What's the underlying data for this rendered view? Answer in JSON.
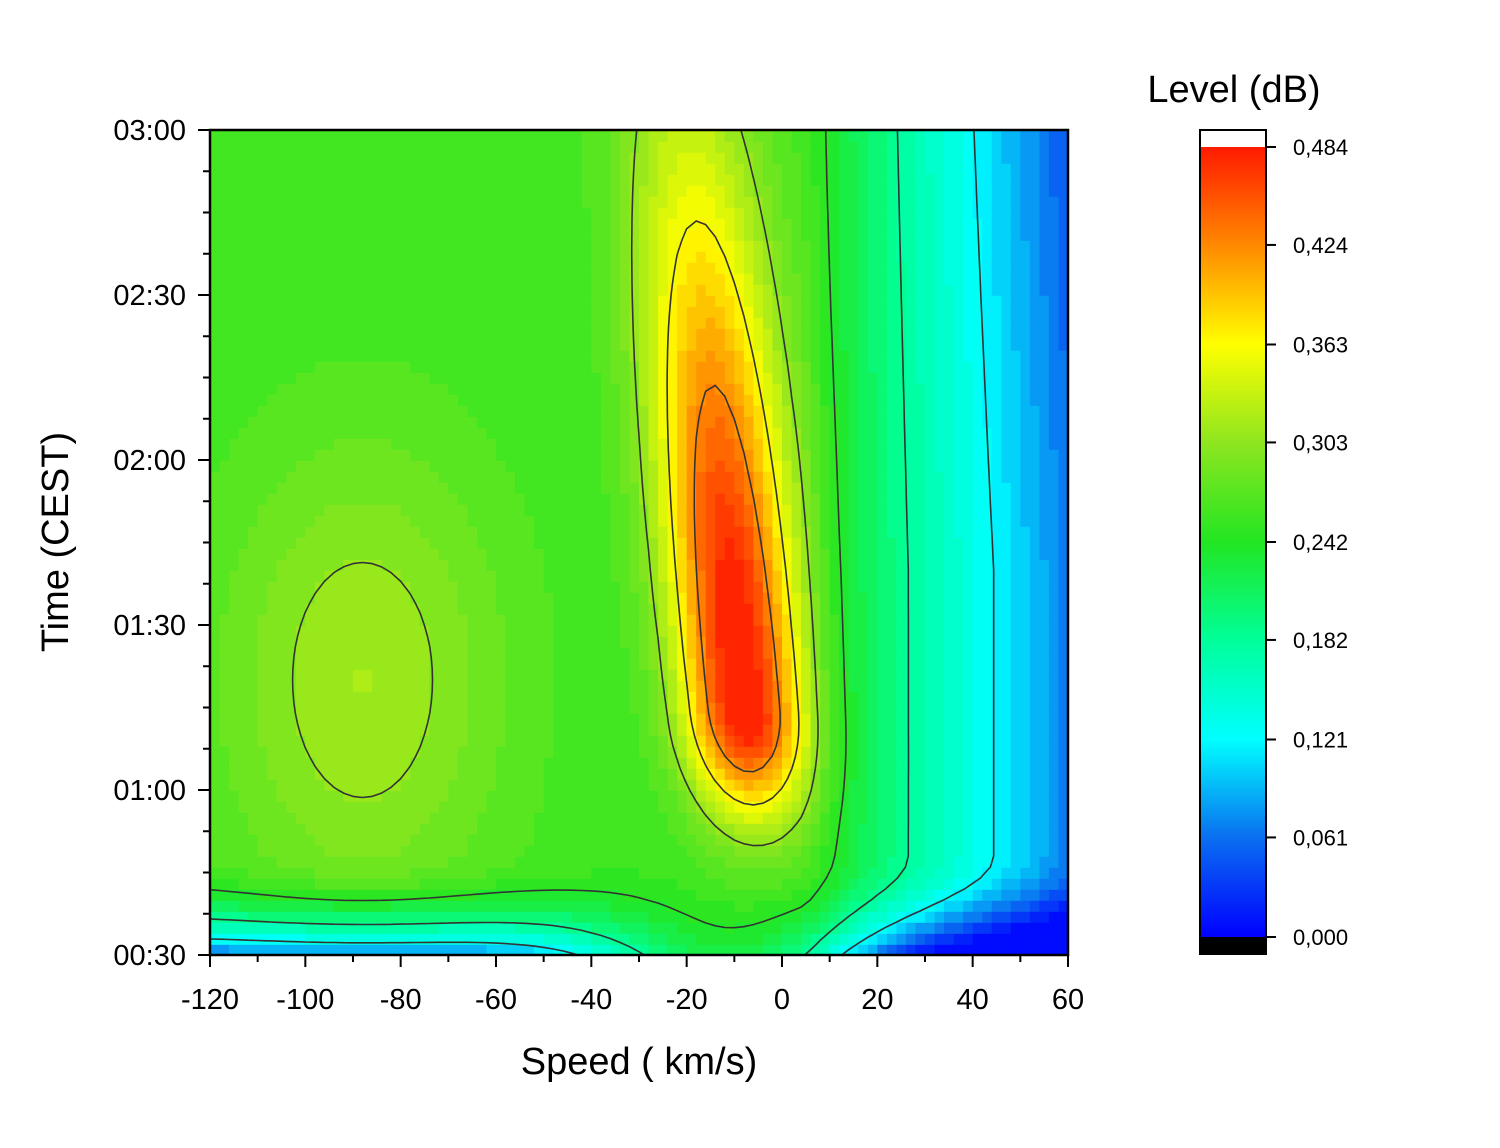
{
  "chart_data": {
    "type": "heatmap",
    "title": "",
    "xlabel": "Speed ( km/s)",
    "ylabel": "Time (CEST)",
    "xlim": [
      -120,
      60
    ],
    "x_ticks": [
      -120,
      -100,
      -80,
      -60,
      -40,
      -20,
      0,
      20,
      40,
      60
    ],
    "x_tick_labels": [
      "-120",
      "-100",
      "-80",
      "-60",
      "-40",
      "-20",
      "0",
      "20",
      "40",
      "60"
    ],
    "ylim_minutes": [
      30,
      180
    ],
    "y_ticks_minutes": [
      30,
      60,
      90,
      120,
      150,
      180
    ],
    "y_tick_labels": [
      "00:30",
      "01:00",
      "01:30",
      "02:00",
      "02:30",
      "03:00"
    ],
    "colorbar": {
      "title": "Level (dB)",
      "min": 0.0,
      "max": 0.484,
      "tick_values": [
        0.0,
        0.061,
        0.121,
        0.182,
        0.242,
        0.303,
        0.363,
        0.424,
        0.484
      ],
      "tick_labels": [
        "0,000",
        "0,061",
        "0,121",
        "0,182",
        "0,242",
        "0,303",
        "0,363",
        "0,424",
        "0,484"
      ],
      "stops": [
        {
          "v": 0.0,
          "color": "#0000ff"
        },
        {
          "v": 0.061,
          "color": "#0a6ff0"
        },
        {
          "v": 0.121,
          "color": "#00ffff"
        },
        {
          "v": 0.182,
          "color": "#00ff99"
        },
        {
          "v": 0.242,
          "color": "#22e622"
        },
        {
          "v": 0.303,
          "color": "#8ee61f"
        },
        {
          "v": 0.363,
          "color": "#ffff00"
        },
        {
          "v": 0.424,
          "color": "#ff8800"
        },
        {
          "v": 0.484,
          "color": "#ff1a00"
        }
      ],
      "under_color": "#000000",
      "over_color": "#ffffff"
    },
    "contour_levels": [
      0.121,
      0.182,
      0.242,
      0.303,
      0.363,
      0.424
    ],
    "features": [
      {
        "name": "red core",
        "speed": -10,
        "time": "01:10",
        "level": 0.47
      },
      {
        "name": "green lobe",
        "speed": -90,
        "time": "01:15",
        "level": 0.3
      },
      {
        "name": "blue region",
        "speed": 45,
        "time": "02:40",
        "level": 0.08
      }
    ],
    "grid": false
  }
}
